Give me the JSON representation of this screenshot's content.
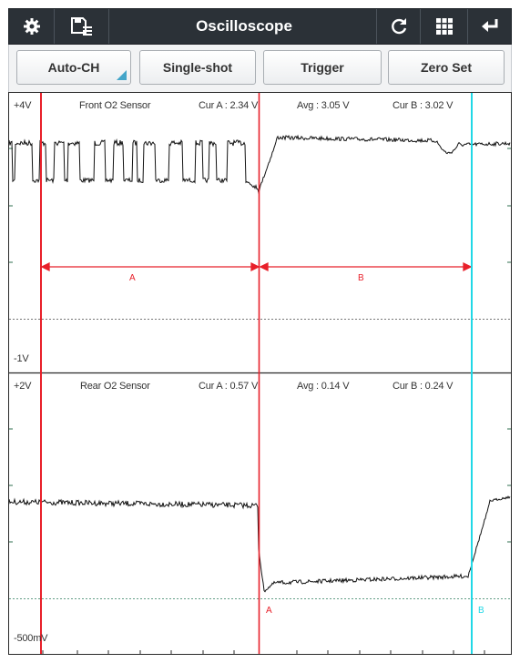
{
  "header": {
    "title": "Oscilloscope",
    "icons": [
      "gear-icon",
      "save-list-icon",
      "refresh-icon",
      "grid-icon",
      "back-icon"
    ]
  },
  "toolbar": {
    "buttons": [
      "Auto-CH",
      "Single-shot",
      "Trigger",
      "Zero Set"
    ]
  },
  "channels": [
    {
      "top_label": "+4V",
      "bottom_label": "-1V",
      "name": "Front O2 Sensor",
      "cur_a": "Cur A : 2.34 V",
      "avg": "Avg : 3.05 V",
      "cur_b": "Cur B : 3.02 V",
      "segment_a": "A",
      "segment_b": "B"
    },
    {
      "top_label": "+2V",
      "bottom_label": "-500mV",
      "name": "Rear O2 Sensor",
      "cur_a": "Cur A : 0.57 V",
      "avg": "Avg : 0.14 V",
      "cur_b": "Cur B : 0.24 V",
      "cursor_a": "A",
      "cursor_b": "B"
    }
  ],
  "colors": {
    "cursor_a": "#e8202a",
    "cursor_b": "#20d8e6",
    "trace": "#111111",
    "title_bar": "#2b3137",
    "accent": "#43a5c9"
  }
}
